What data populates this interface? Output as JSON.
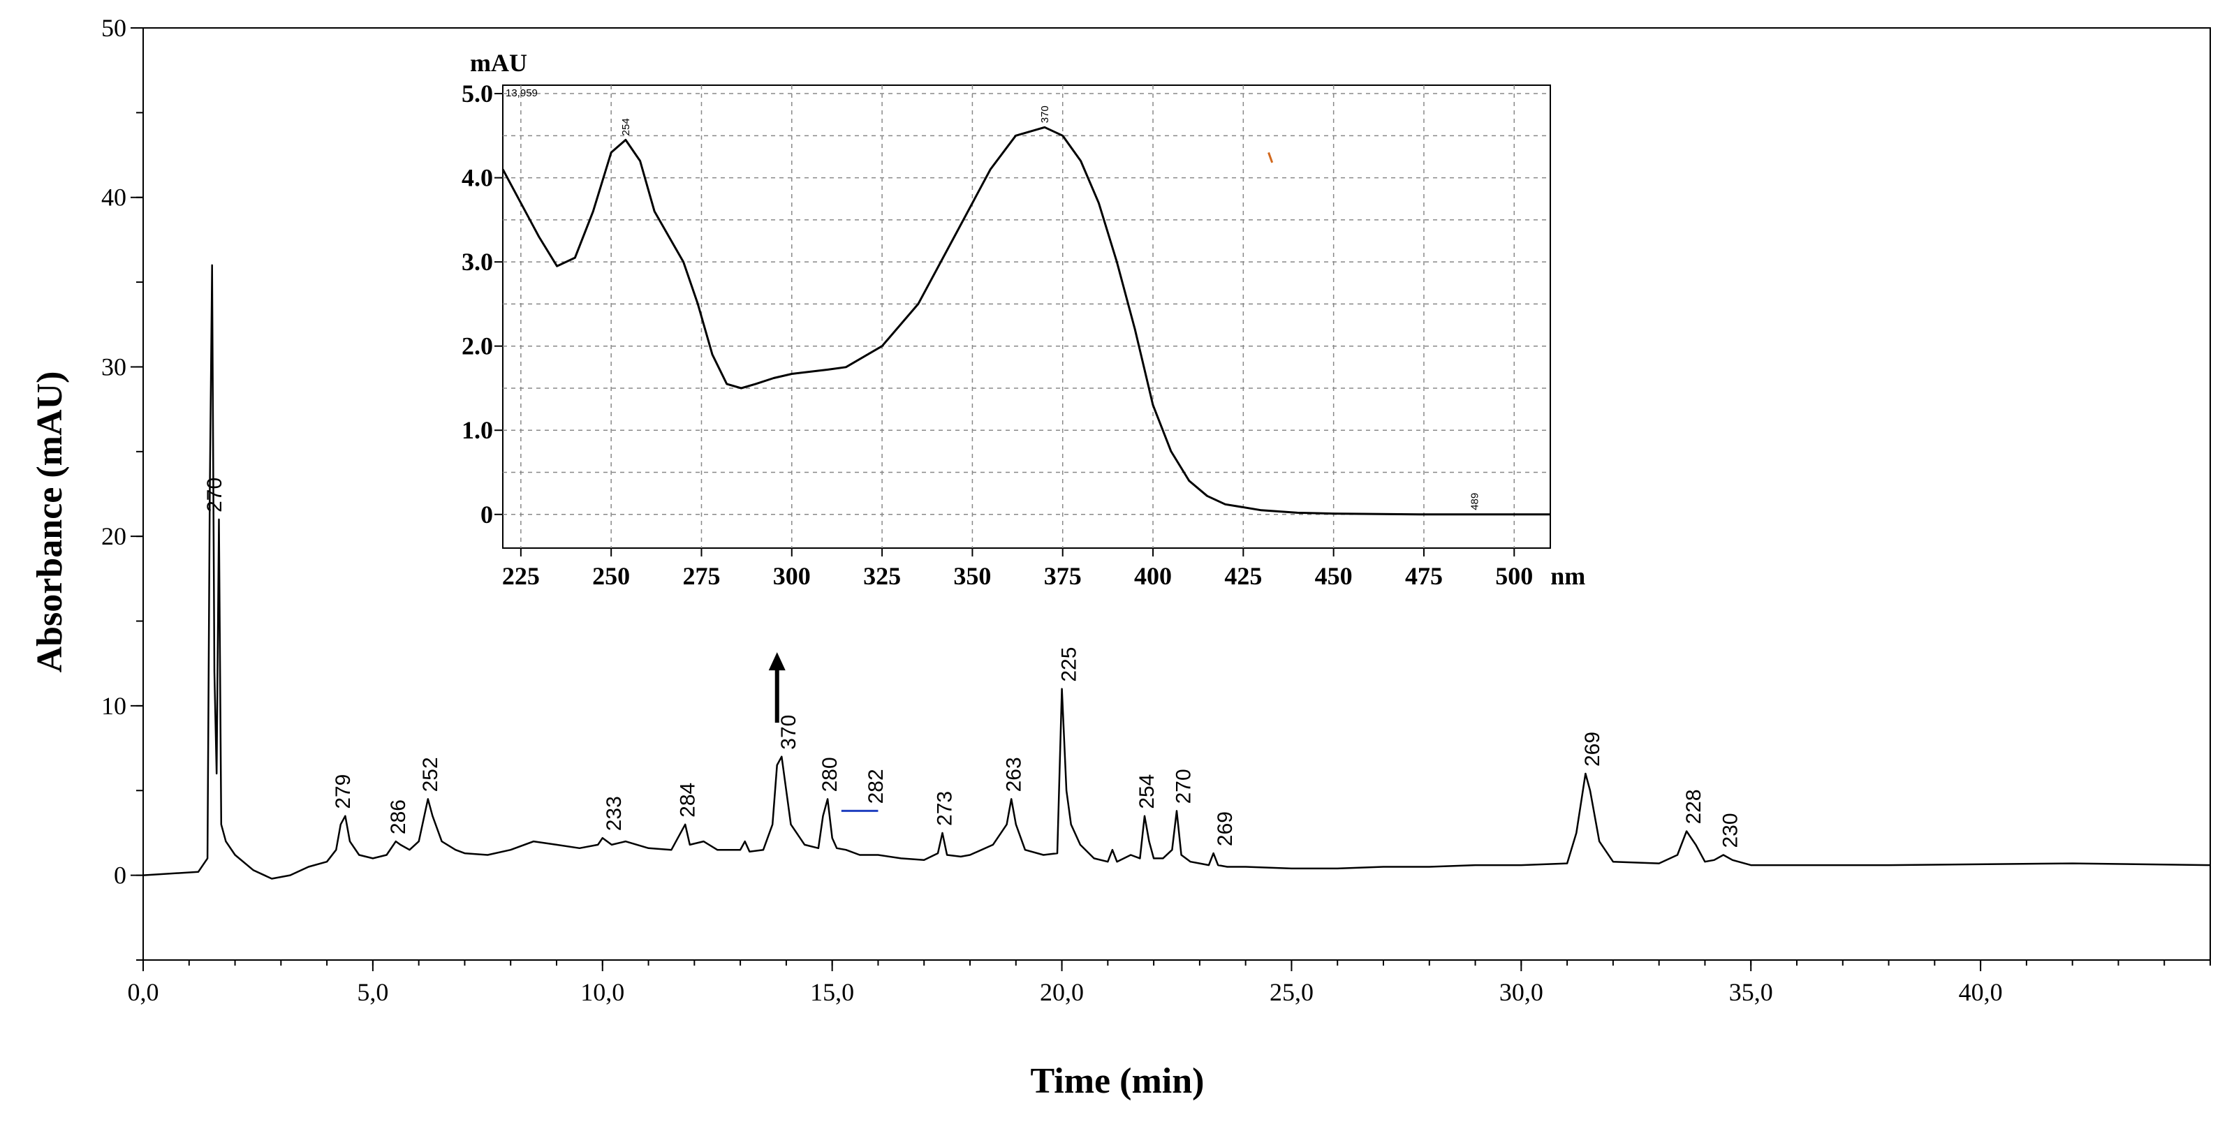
{
  "chart_data": [
    {
      "type": "line",
      "xlabel": "Time (min)",
      "ylabel": "Absorbance (mAU)",
      "xlim": [
        0,
        45
      ],
      "ylim": [
        -5,
        50
      ],
      "x_ticks": [
        "0,0",
        "5,0",
        "10,0",
        "15,0",
        "20,0",
        "25,0",
        "30,0",
        "35,0",
        "40,0"
      ],
      "x_tick_values": [
        0,
        5,
        10,
        15,
        20,
        25,
        30,
        35,
        40
      ],
      "y_ticks": [
        "0",
        "10",
        "20",
        "30",
        "40",
        "50"
      ],
      "y_tick_values": [
        0,
        10,
        20,
        30,
        40,
        50
      ],
      "series": [
        {
          "points": [
            [
              0,
              0
            ],
            [
              1.2,
              0.2
            ],
            [
              1.4,
              1
            ],
            [
              1.45,
              22.5
            ],
            [
              1.5,
              36
            ],
            [
              1.55,
              12
            ],
            [
              1.6,
              6
            ],
            [
              1.65,
              21
            ],
            [
              1.7,
              3
            ],
            [
              1.8,
              2
            ],
            [
              2,
              1.2
            ],
            [
              2.4,
              0.3
            ],
            [
              2.8,
              -0.2
            ],
            [
              3.2,
              0
            ],
            [
              3.6,
              0.5
            ],
            [
              4,
              0.8
            ],
            [
              4.2,
              1.5
            ],
            [
              4.3,
              3
            ],
            [
              4.4,
              3.5
            ],
            [
              4.5,
              2
            ],
            [
              4.7,
              1.2
            ],
            [
              5,
              1
            ],
            [
              5.3,
              1.2
            ],
            [
              5.5,
              2
            ],
            [
              5.6,
              1.8
            ],
            [
              5.8,
              1.5
            ],
            [
              6,
              2
            ],
            [
              6.2,
              4.5
            ],
            [
              6.3,
              3.5
            ],
            [
              6.5,
              2
            ],
            [
              6.8,
              1.5
            ],
            [
              7,
              1.3
            ],
            [
              7.5,
              1.2
            ],
            [
              8,
              1.5
            ],
            [
              8.5,
              2
            ],
            [
              9,
              1.8
            ],
            [
              9.5,
              1.6
            ],
            [
              9.9,
              1.8
            ],
            [
              10,
              2.2
            ],
            [
              10.2,
              1.8
            ],
            [
              10.5,
              2
            ],
            [
              11,
              1.6
            ],
            [
              11.5,
              1.5
            ],
            [
              11.8,
              3
            ],
            [
              11.9,
              1.8
            ],
            [
              12.2,
              2
            ],
            [
              12.5,
              1.5
            ],
            [
              13,
              1.5
            ],
            [
              13.1,
              2
            ],
            [
              13.2,
              1.4
            ],
            [
              13.5,
              1.5
            ],
            [
              13.7,
              3
            ],
            [
              13.8,
              6.5
            ],
            [
              13.9,
              7
            ],
            [
              14.1,
              3
            ],
            [
              14.4,
              1.8
            ],
            [
              14.7,
              1.6
            ],
            [
              14.8,
              3.5
            ],
            [
              14.9,
              4.5
            ],
            [
              15,
              2.2
            ],
            [
              15.1,
              1.6
            ],
            [
              15.3,
              1.5
            ],
            [
              15.6,
              1.2
            ],
            [
              16,
              1.2
            ],
            [
              16.5,
              1
            ],
            [
              17,
              0.9
            ],
            [
              17.3,
              1.3
            ],
            [
              17.4,
              2.5
            ],
            [
              17.5,
              1.2
            ],
            [
              17.8,
              1.1
            ],
            [
              18,
              1.2
            ],
            [
              18.5,
              1.8
            ],
            [
              18.8,
              3
            ],
            [
              18.9,
              4.5
            ],
            [
              19,
              3
            ],
            [
              19.2,
              1.5
            ],
            [
              19.6,
              1.2
            ],
            [
              19.9,
              1.3
            ],
            [
              20,
              11
            ],
            [
              20.1,
              5
            ],
            [
              20.2,
              3
            ],
            [
              20.4,
              1.8
            ],
            [
              20.7,
              1
            ],
            [
              21,
              0.8
            ],
            [
              21.1,
              1.5
            ],
            [
              21.2,
              0.8
            ],
            [
              21.5,
              1.2
            ],
            [
              21.7,
              1
            ],
            [
              21.8,
              3.5
            ],
            [
              21.9,
              2
            ],
            [
              22,
              1
            ],
            [
              22.2,
              1
            ],
            [
              22.4,
              1.5
            ],
            [
              22.5,
              3.8
            ],
            [
              22.6,
              1.2
            ],
            [
              22.8,
              0.8
            ],
            [
              23,
              0.7
            ],
            [
              23.2,
              0.6
            ],
            [
              23.3,
              1.3
            ],
            [
              23.4,
              0.6
            ],
            [
              23.6,
              0.5
            ],
            [
              24,
              0.5
            ],
            [
              25,
              0.4
            ],
            [
              26,
              0.4
            ],
            [
              27,
              0.5
            ],
            [
              28,
              0.5
            ],
            [
              29,
              0.6
            ],
            [
              30,
              0.6
            ],
            [
              31,
              0.7
            ],
            [
              31.2,
              2.5
            ],
            [
              31.4,
              6
            ],
            [
              31.5,
              5
            ],
            [
              31.7,
              2
            ],
            [
              32,
              0.8
            ],
            [
              33,
              0.7
            ],
            [
              33.4,
              1.2
            ],
            [
              33.6,
              2.6
            ],
            [
              33.8,
              1.8
            ],
            [
              34,
              0.8
            ],
            [
              34.2,
              0.9
            ],
            [
              34.4,
              1.2
            ],
            [
              34.6,
              0.9
            ],
            [
              35,
              0.6
            ],
            [
              38,
              0.6
            ],
            [
              42,
              0.7
            ],
            [
              45,
              0.6
            ]
          ]
        }
      ],
      "annotations": [
        {
          "label": "270",
          "x": 1.7,
          "y": 21
        },
        {
          "label": "279",
          "x": 4.5,
          "y": 3.5
        },
        {
          "label": "286",
          "x": 5.7,
          "y": 2
        },
        {
          "label": "252",
          "x": 6.4,
          "y": 4.5
        },
        {
          "label": "233",
          "x": 10.4,
          "y": 2.2
        },
        {
          "label": "284",
          "x": 12.0,
          "y": 3
        },
        {
          "label": "370",
          "x": 14.2,
          "y": 7
        },
        {
          "label": "280",
          "x": 15.1,
          "y": 4.5
        },
        {
          "label": "282",
          "x": 16.1,
          "y": 3.8
        },
        {
          "label": "273",
          "x": 17.6,
          "y": 2.5
        },
        {
          "label": "263",
          "x": 19.1,
          "y": 4.5
        },
        {
          "label": "225",
          "x": 20.3,
          "y": 11
        },
        {
          "label": "254",
          "x": 22.0,
          "y": 3.5
        },
        {
          "label": "270",
          "x": 22.8,
          "y": 3.8
        },
        {
          "label": "269",
          "x": 23.7,
          "y": 1.3
        },
        {
          "label": "269",
          "x": 31.7,
          "y": 6
        },
        {
          "label": "228",
          "x": 33.9,
          "y": 2.6
        },
        {
          "label": "230",
          "x": 34.7,
          "y": 1.2
        }
      ],
      "marker_arrow": {
        "x": 13.8,
        "y_from": 9,
        "y_to": 13
      }
    },
    {
      "type": "line",
      "xlabel": "nm",
      "ylabel": "mAU",
      "xlim": [
        220,
        510
      ],
      "ylim": [
        -0.4,
        5.1
      ],
      "x_ticks": [
        "225",
        "250",
        "275",
        "300",
        "325",
        "350",
        "375",
        "400",
        "425",
        "450",
        "475",
        "500"
      ],
      "x_tick_values": [
        225,
        250,
        275,
        300,
        325,
        350,
        375,
        400,
        425,
        450,
        475,
        500
      ],
      "y_ticks": [
        "0",
        "1.0",
        "2.0",
        "3.0",
        "4.0",
        "5.0"
      ],
      "y_tick_values": [
        0,
        1,
        2,
        3,
        4,
        5
      ],
      "series": [
        {
          "points": [
            [
              220,
              4.1
            ],
            [
              225,
              3.7
            ],
            [
              230,
              3.3
            ],
            [
              235,
              2.95
            ],
            [
              240,
              3.05
            ],
            [
              245,
              3.6
            ],
            [
              250,
              4.3
            ],
            [
              254,
              4.45
            ],
            [
              258,
              4.2
            ],
            [
              262,
              3.6
            ],
            [
              266,
              3.3
            ],
            [
              270,
              3.0
            ],
            [
              274,
              2.5
            ],
            [
              278,
              1.9
            ],
            [
              282,
              1.55
            ],
            [
              286,
              1.5
            ],
            [
              290,
              1.55
            ],
            [
              295,
              1.62
            ],
            [
              300,
              1.67
            ],
            [
              310,
              1.72
            ],
            [
              315,
              1.75
            ],
            [
              325,
              2.0
            ],
            [
              335,
              2.5
            ],
            [
              345,
              3.3
            ],
            [
              355,
              4.1
            ],
            [
              362,
              4.5
            ],
            [
              370,
              4.6
            ],
            [
              375,
              4.5
            ],
            [
              380,
              4.2
            ],
            [
              385,
              3.7
            ],
            [
              390,
              3.0
            ],
            [
              395,
              2.2
            ],
            [
              400,
              1.3
            ],
            [
              405,
              0.75
            ],
            [
              410,
              0.4
            ],
            [
              415,
              0.22
            ],
            [
              420,
              0.12
            ],
            [
              430,
              0.05
            ],
            [
              440,
              0.02
            ],
            [
              450,
              0.01
            ],
            [
              475,
              0.0
            ],
            [
              510,
              0.0
            ]
          ]
        }
      ],
      "annotations": [
        {
          "label": "13,959",
          "x": 221,
          "y": 5.0
        },
        {
          "label": "254",
          "x": 254,
          "y": 4.45
        },
        {
          "label": "370",
          "x": 370,
          "y": 4.6
        },
        {
          "label": "489",
          "x": 489,
          "y": 0.0
        }
      ]
    }
  ]
}
